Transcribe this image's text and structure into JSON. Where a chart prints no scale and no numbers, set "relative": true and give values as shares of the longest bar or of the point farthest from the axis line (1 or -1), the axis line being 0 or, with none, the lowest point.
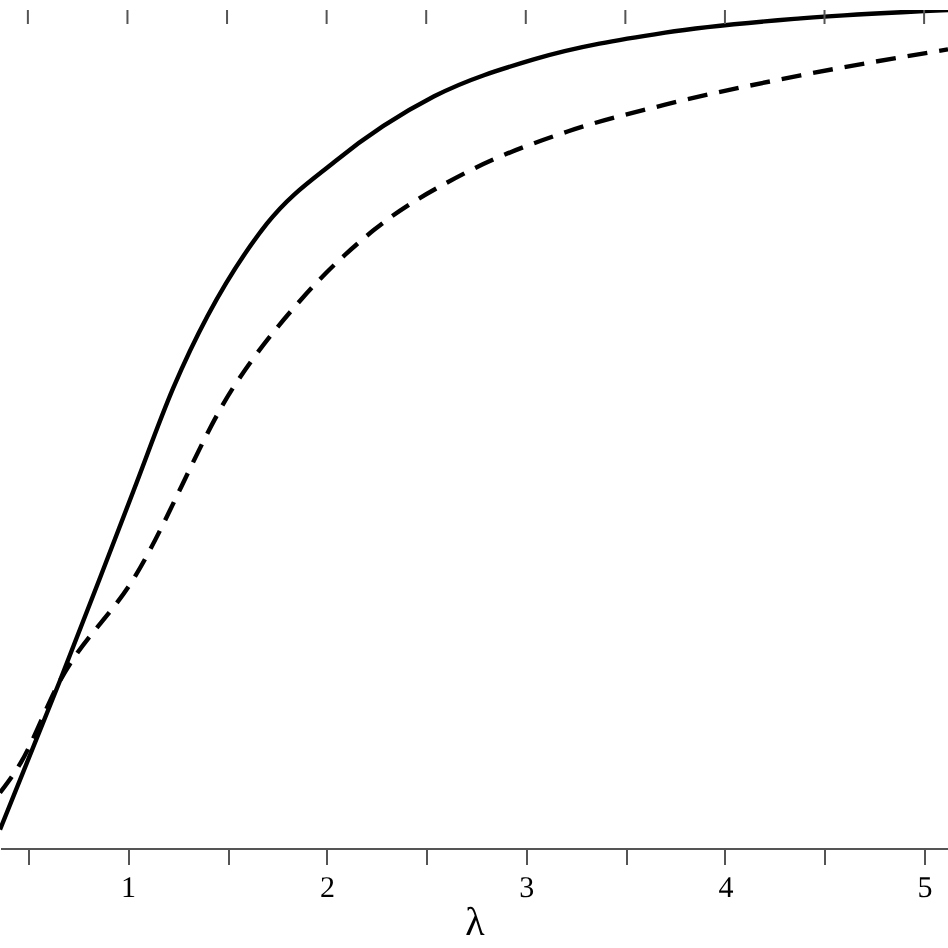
{
  "chart_data": {
    "type": "line",
    "xlabel": "λ",
    "relative": true,
    "xlim": [
      0.36,
      5.12
    ],
    "xticks": [
      {
        "value": 0.5,
        "label": null
      },
      1,
      {
        "value": 1.5,
        "label": null
      },
      2,
      {
        "value": 2.5,
        "label": null
      },
      3,
      {
        "value": 3.5,
        "label": null
      },
      4,
      {
        "value": 4.5,
        "label": null
      },
      5
    ],
    "grid": false,
    "series": [
      {
        "color": "#000000",
        "line_style": "solid",
        "x": [
          0.36,
          0.66,
          0.86,
          1.03,
          1.23,
          1.7,
          2.04,
          2.54,
          3.04,
          3.7,
          4.38,
          5.12
        ],
        "values": [
          0.022,
          0.199,
          0.321,
          0.426,
          0.549,
          0.745,
          0.819,
          0.897,
          0.941,
          0.973,
          0.99,
          1
        ]
      },
      {
        "color": "#000000",
        "line_style": "dashed",
        "x": [
          0.36,
          0.46,
          0.66,
          1.03,
          1.53,
          1.87,
          2.24,
          2.7,
          3.21,
          3.7,
          4.38,
          5.12
        ],
        "values": [
          0.066,
          0.1,
          0.199,
          0.321,
          0.549,
          0.654,
          0.738,
          0.806,
          0.855,
          0.887,
          0.922,
          0.953
        ]
      }
    ]
  }
}
